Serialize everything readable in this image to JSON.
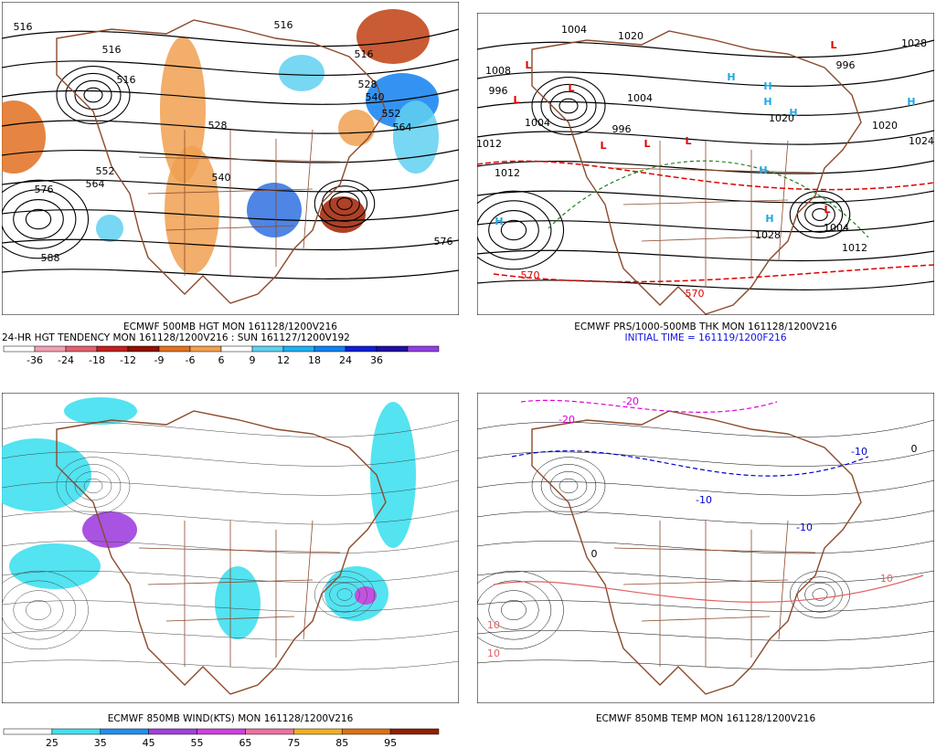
{
  "panels": [
    {
      "captions": [
        "ECMWF 500MB HGT MON 161128/1200V216",
        "24-HR HGT TENDENCY MON 161128/1200V216 : SUN 161127/1200V192"
      ],
      "colorbar": [
        -36,
        -24,
        -18,
        -12,
        -9,
        -6,
        6,
        9,
        12,
        18,
        24,
        36
      ],
      "contour_labels": [
        {
          "text": "516",
          "color": "#000"
        },
        {
          "text": "516",
          "color": "#000"
        },
        {
          "text": "516",
          "color": "#000"
        },
        {
          "text": "516",
          "color": "#000"
        },
        {
          "text": "516",
          "color": "#000"
        },
        {
          "text": "528",
          "color": "#000"
        },
        {
          "text": "528",
          "color": "#000"
        },
        {
          "text": "540",
          "color": "#000"
        },
        {
          "text": "540",
          "color": "#000"
        },
        {
          "text": "552",
          "color": "#000"
        },
        {
          "text": "552",
          "color": "#000"
        },
        {
          "text": "564",
          "color": "#000"
        },
        {
          "text": "564",
          "color": "#000"
        },
        {
          "text": "576",
          "color": "#000"
        },
        {
          "text": "576",
          "color": "#000"
        },
        {
          "text": "588",
          "color": "#000"
        }
      ]
    },
    {
      "captions": [
        "ECMWF PRS/1000-500MB THK MON 161128/1200V216",
        "INITIAL TIME = 161119/1200F216"
      ],
      "contour_labels": [
        {
          "text": "1004",
          "color": "#000"
        },
        {
          "text": "1020",
          "color": "#000"
        },
        {
          "text": "1008",
          "color": "#000"
        },
        {
          "text": "996",
          "color": "#000"
        },
        {
          "text": "1004",
          "color": "#000"
        },
        {
          "text": "996",
          "color": "#000"
        },
        {
          "text": "1004",
          "color": "#000"
        },
        {
          "text": "1012",
          "color": "#000"
        },
        {
          "text": "1012",
          "color": "#000"
        },
        {
          "text": "1020",
          "color": "#000"
        },
        {
          "text": "1028",
          "color": "#000"
        },
        {
          "text": "1020",
          "color": "#000"
        },
        {
          "text": "1024",
          "color": "#000"
        },
        {
          "text": "996",
          "color": "#000"
        },
        {
          "text": "1004",
          "color": "#000"
        },
        {
          "text": "1012",
          "color": "#000"
        },
        {
          "text": "1028",
          "color": "#000"
        },
        {
          "text": "570",
          "color": "#e00000"
        },
        {
          "text": "570",
          "color": "#e00000"
        }
      ],
      "highs": [
        "H",
        "H",
        "H",
        "H",
        "H",
        "H",
        "H",
        "H"
      ],
      "lows": [
        "L",
        "L",
        "L",
        "L",
        "L",
        "L",
        "L",
        "L"
      ]
    },
    {
      "captions": [
        "ECMWF 850MB WIND(KTS) MON 161128/1200V216"
      ],
      "colorbar": [
        25,
        35,
        45,
        55,
        65,
        75,
        85,
        95
      ]
    },
    {
      "captions": [
        "ECMWF 850MB TEMP MON 161128/1200V216"
      ],
      "contour_labels": [
        {
          "text": "-20",
          "color": "#e000e0"
        },
        {
          "text": "-20",
          "color": "#e000e0"
        },
        {
          "text": "-10",
          "color": "#0000d0"
        },
        {
          "text": "-10",
          "color": "#0000d0"
        },
        {
          "text": "-10",
          "color": "#0000d0"
        },
        {
          "text": "0",
          "color": "#000"
        },
        {
          "text": "0",
          "color": "#000"
        },
        {
          "text": "10",
          "color": "#e06060"
        },
        {
          "text": "10",
          "color": "#e06060"
        },
        {
          "text": "10",
          "color": "#e06060"
        }
      ]
    }
  ]
}
